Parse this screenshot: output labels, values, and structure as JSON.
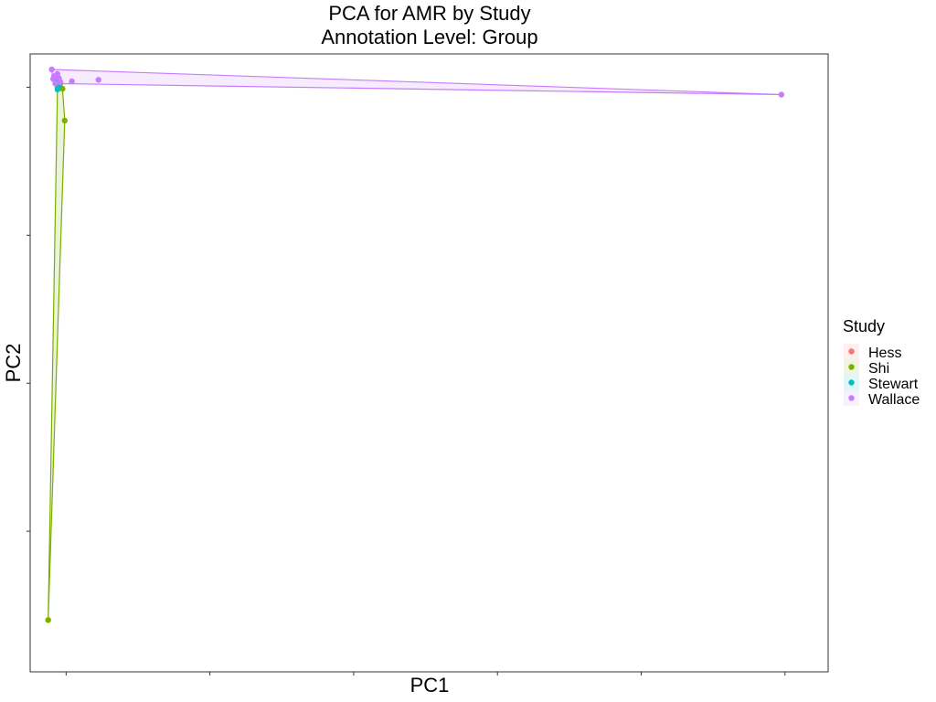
{
  "chart_data": {
    "type": "scatter",
    "title": "PCA for AMR by Study",
    "subtitle": "Annotation Level: Group",
    "xlabel": "PC1",
    "ylabel": "PC2",
    "xlim": [
      -0.5,
      10.6
    ],
    "ylim": [
      -7.9,
      0.45
    ],
    "x_ticks": [
      0,
      2,
      4,
      6,
      8,
      10
    ],
    "y_ticks": [
      -6,
      -4,
      -2,
      0
    ],
    "tick_labels_shown": false,
    "grid": false,
    "legend": {
      "title": "Study",
      "position": "right",
      "entries": [
        "Hess",
        "Shi",
        "Stewart",
        "Wallace"
      ]
    },
    "hulls": true,
    "series": [
      {
        "name": "Hess",
        "color": "#F8766D",
        "points": []
      },
      {
        "name": "Shi",
        "color": "#7CAE00",
        "points": [
          [
            -0.25,
            -7.2
          ],
          [
            -0.02,
            -0.45
          ],
          [
            -0.08,
            0.05
          ],
          [
            -0.12,
            -0.01
          ],
          [
            -0.1,
            0.1
          ],
          [
            -0.05,
            -0.02
          ]
        ]
      },
      {
        "name": "Stewart",
        "color": "#00BFC4",
        "points": [
          [
            -0.12,
            -0.03
          ],
          [
            -0.1,
            0.02
          ],
          [
            -0.14,
            0.08
          ]
        ]
      },
      {
        "name": "Wallace",
        "color": "#C77CFF",
        "points": [
          [
            -0.2,
            0.24
          ],
          [
            -0.17,
            0.15
          ],
          [
            -0.12,
            0.18
          ],
          [
            -0.1,
            0.12
          ],
          [
            -0.18,
            0.11
          ],
          [
            -0.08,
            0.07
          ],
          [
            -0.15,
            0.05
          ],
          [
            0.08,
            0.08
          ],
          [
            0.45,
            0.1
          ],
          [
            9.95,
            -0.1
          ]
        ]
      }
    ]
  }
}
